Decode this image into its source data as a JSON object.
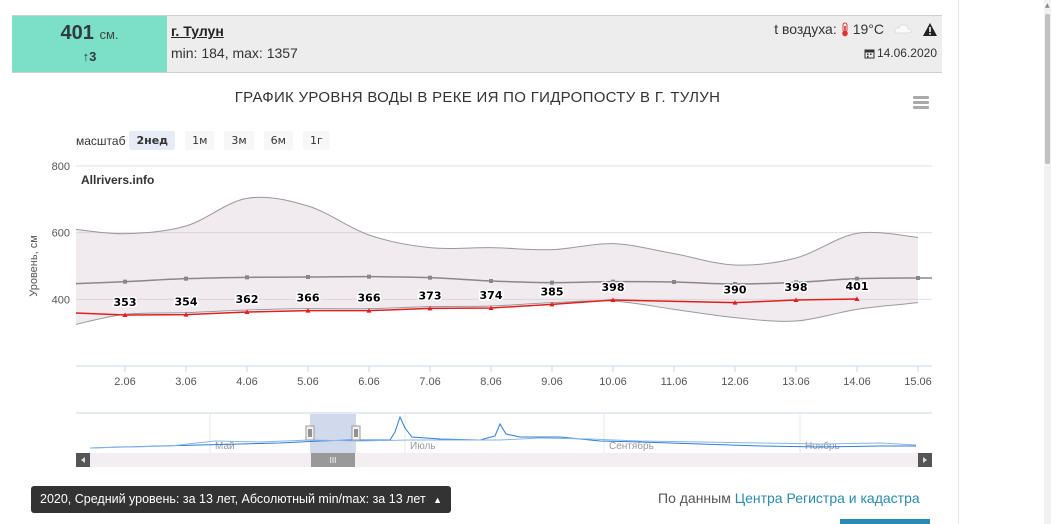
{
  "station": {
    "level_value": "401",
    "level_unit": "см.",
    "level_delta": "3",
    "city": "г. Тулун",
    "minmax": "min: 184, max: 1357",
    "air_temp_label": "t воздуха:",
    "air_temp_value": "19°C",
    "date": "14.06.2020"
  },
  "chart": {
    "title": "ГРАФИК УРОВНЯ ВОДЫ В РЕКЕ ИЯ ПО ГИДРОПОСТУ В Г. ТУЛУН",
    "zoom_label": "масштаб",
    "zoom_buttons": [
      "2нед",
      "1м",
      "3м",
      "6м",
      "1г"
    ],
    "zoom_active": "2нед",
    "watermark": "Allrivers.info",
    "ylabel": "Уровень, см"
  },
  "navigator": {
    "month_labels": [
      "Май",
      "Июль",
      "Сентябрь",
      "Ноябрь"
    ],
    "handle_label": "III"
  },
  "legend_button": {
    "label": "2020, Средний уровень: за 13 лет, Абсолютный min/max: за 13 лет"
  },
  "source": {
    "prefix": "По данным",
    "link": "Центра Регистра и кадастра"
  },
  "chart_data": {
    "type": "line",
    "title": "ГРАФИК УРОВНЯ ВОДЫ В РЕКЕ ИЯ ПО ГИДРОПОСТУ В Г. ТУЛУН",
    "xlabel": "",
    "ylabel": "Уровень, см",
    "ylim": [
      200,
      800
    ],
    "yticks": [
      400,
      600,
      800
    ],
    "x": [
      "2.06",
      "3.06",
      "4.06",
      "5.06",
      "6.06",
      "7.06",
      "8.06",
      "9.06",
      "10.06",
      "11.06",
      "12.06",
      "13.06",
      "14.06",
      "15.06"
    ],
    "series": [
      {
        "color": "#e02020",
        "x": [
          "2.06",
          "3.06",
          "4.06",
          "5.06",
          "6.06",
          "7.06",
          "8.06",
          "9.06",
          "10.06",
          "12.06",
          "13.06",
          "14.06"
        ],
        "values": [
          353,
          354,
          362,
          366,
          366,
          373,
          374,
          385,
          398,
          390,
          398,
          401
        ],
        "data_labels": [
          "353",
          "354",
          "362",
          "366",
          "366",
          "373",
          "374",
          "385",
          "398",
          "390",
          "398",
          "401"
        ]
      },
      {
        "color": "#888888",
        "x": [
          "2.06",
          "3.06",
          "4.06",
          "5.06",
          "6.06",
          "7.06",
          "8.06",
          "9.06",
          "10.06",
          "11.06",
          "12.06",
          "13.06",
          "14.06",
          "15.06"
        ],
        "values": [
          453,
          462,
          466,
          467,
          468,
          465,
          455,
          450,
          453,
          452,
          446,
          451,
          462,
          464
        ]
      },
      {
        "color": "#999999",
        "band": "max",
        "x": [
          "1.06",
          "2.06",
          "3.06",
          "4.06",
          "5.06",
          "6.06",
          "7.06",
          "8.06",
          "9.06",
          "10.06",
          "11.06",
          "12.06",
          "13.06",
          "14.06",
          "15.06"
        ],
        "values": [
          610,
          597,
          620,
          703,
          680,
          593,
          555,
          555,
          549,
          567,
          537,
          503,
          524,
          598,
          586
        ]
      },
      {
        "color": "#999999",
        "band": "min",
        "x": [
          "1.06",
          "2.06",
          "3.06",
          "4.06",
          "5.06",
          "6.06",
          "7.06",
          "8.06",
          "9.06",
          "10.06",
          "11.06",
          "12.06",
          "13.06",
          "14.06",
          "15.06"
        ],
        "values": [
          325,
          355,
          360,
          368,
          372,
          372,
          378,
          380,
          390,
          395,
          370,
          345,
          335,
          370,
          390
        ]
      }
    ],
    "grid": true,
    "legend": "none"
  }
}
